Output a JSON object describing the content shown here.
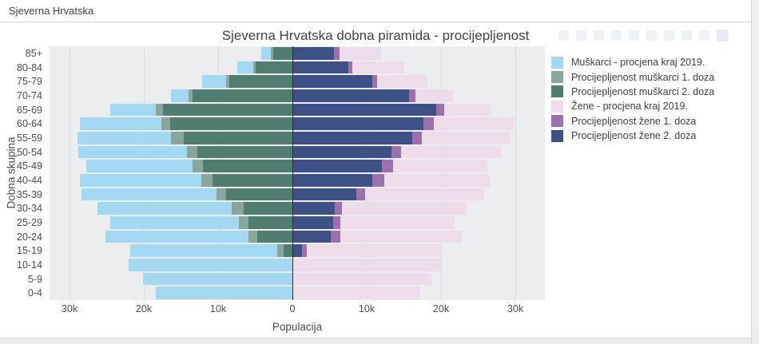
{
  "header": {
    "title": "Sjeverna Hrvatska"
  },
  "modebar": {
    "icons": [
      "camera-icon",
      "zoom-icon",
      "pan-icon",
      "box-select-icon",
      "lasso-icon",
      "zoom-in-icon",
      "zoom-out-icon",
      "autoscale-icon",
      "reset-axes-icon",
      "plotly-logo-icon"
    ]
  },
  "chart_data": {
    "type": "bar",
    "subtype": "population-pyramid",
    "title": "Sjeverna Hrvatska dobna piramida - procijepljenost",
    "xlabel": "Populacija",
    "ylabel": "Dobna skupina",
    "x_ticks": [
      "30k",
      "20k",
      "10k",
      "0",
      "10k",
      "20k",
      "30k"
    ],
    "x_tick_values_k": [
      -30,
      -20,
      -10,
      0,
      10,
      20,
      30
    ],
    "xlim_k": [
      -32.7,
      34.0
    ],
    "grid": true,
    "legend_position": "right",
    "plot_bg": "#ebedef",
    "categories_top_to_bottom": [
      "85+",
      "80-84",
      "75-79",
      "70-74",
      "65-69",
      "60-64",
      "55-59",
      "50-54",
      "45-49",
      "40-44",
      "35-39",
      "30-34",
      "25-29",
      "20-24",
      "15-19",
      "10-14",
      "5-9",
      "0-4"
    ],
    "value_units": "thousands of persons",
    "series": [
      {
        "name": "Muškarci - procjena kraj 2019.",
        "side": "left",
        "color": "#a4d8f2",
        "values_k": [
          4.2,
          7.4,
          12.2,
          16.4,
          24.5,
          28.6,
          28.9,
          28.8,
          27.7,
          28.6,
          28.4,
          26.2,
          24.5,
          25.2,
          21.8,
          22.0,
          20.1,
          18.4
        ]
      },
      {
        "name": "Procijepljenost muškarci 1. doza",
        "side": "left",
        "color": "#87a79c",
        "values_k": [
          2.9,
          5.3,
          8.9,
          14.0,
          18.4,
          17.6,
          16.3,
          14.2,
          13.4,
          12.3,
          10.2,
          8.2,
          7.2,
          5.9,
          2.0,
          0,
          0,
          0
        ]
      },
      {
        "name": "Procijepljenost muškarci 2. doza",
        "side": "left",
        "color": "#517d70",
        "values_k": [
          2.6,
          5.0,
          8.5,
          13.4,
          17.4,
          16.5,
          14.6,
          12.8,
          12.0,
          10.8,
          8.9,
          6.6,
          5.9,
          4.7,
          1.2,
          0,
          0,
          0
        ]
      },
      {
        "name": "Žene - procjena kraj 2019.",
        "side": "right",
        "color": "#eedcea",
        "values_k": [
          11.9,
          15.0,
          18.2,
          21.6,
          26.8,
          29.8,
          29.3,
          28.2,
          26.2,
          26.5,
          25.8,
          23.4,
          21.8,
          22.8,
          20.1,
          20.0,
          18.7,
          17.2
        ]
      },
      {
        "name": "Procijepljenost žene 1. doza",
        "side": "right",
        "color": "#9a70ad",
        "values_k": [
          6.3,
          8.1,
          11.4,
          16.5,
          20.4,
          19.0,
          17.4,
          14.6,
          13.5,
          12.4,
          9.8,
          6.7,
          6.4,
          6.4,
          1.9,
          0,
          0,
          0
        ]
      },
      {
        "name": "Procijepljenost žene 2. doza",
        "side": "right",
        "color": "#3e5186",
        "values_k": [
          5.6,
          7.5,
          10.8,
          15.7,
          19.4,
          17.6,
          16.1,
          13.3,
          12.0,
          10.8,
          8.6,
          5.7,
          5.5,
          5.2,
          1.3,
          0,
          0,
          0
        ]
      }
    ]
  }
}
